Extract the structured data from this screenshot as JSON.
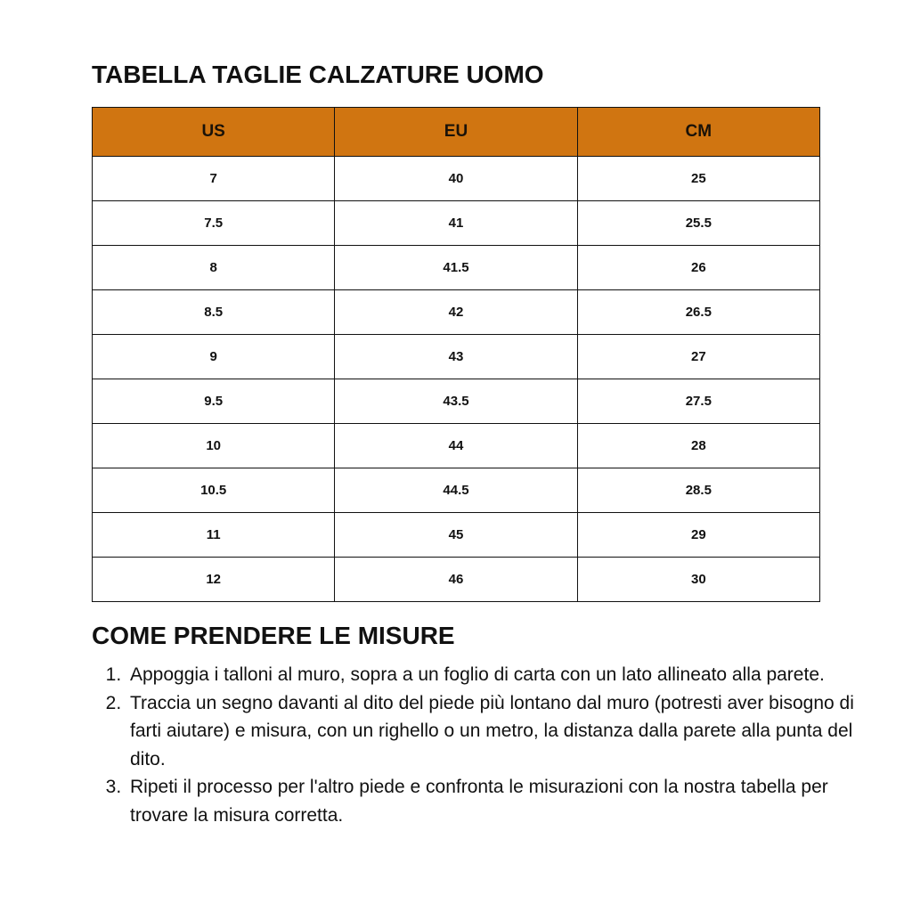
{
  "title": "TABELLA TAGLIE CALZATURE UOMO",
  "table": {
    "headers": [
      "US",
      "EU",
      "CM"
    ],
    "rows": [
      [
        "7",
        "40",
        "25"
      ],
      [
        "7.5",
        "41",
        "25.5"
      ],
      [
        "8",
        "41.5",
        "26"
      ],
      [
        "8.5",
        "42",
        "26.5"
      ],
      [
        "9",
        "43",
        "27"
      ],
      [
        "9.5",
        "43.5",
        "27.5"
      ],
      [
        "10",
        "44",
        "28"
      ],
      [
        "10.5",
        "44.5",
        "28.5"
      ],
      [
        "11",
        "45",
        "29"
      ],
      [
        "12",
        "46",
        "30"
      ]
    ],
    "header_color": "#D07511"
  },
  "instructions": {
    "title": "COME PRENDERE LE MISURE",
    "steps": [
      "Appoggia i talloni al muro, sopra a un foglio di carta con un lato allineato alla parete.",
      "Traccia un segno davanti al dito del piede più lontano dal muro (potresti aver bisogno di farti aiutare) e misura, con un righello o un metro, la distanza dalla parete alla punta del dito.",
      "Ripeti il processo per l'altro piede e confronta le misurazioni con la nostra tabella per trovare la misura corretta."
    ]
  }
}
